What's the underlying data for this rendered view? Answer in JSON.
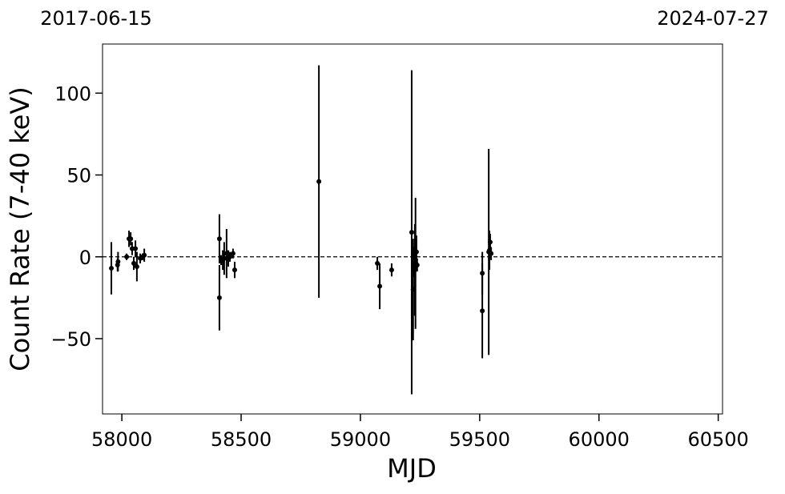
{
  "chart_data": {
    "type": "errorbar",
    "xlabel": "MJD",
    "ylabel": "Count Rate (7-40 keV)",
    "xlim": [
      57919,
      60518
    ],
    "ylim": [
      -96,
      130
    ],
    "xticks": [
      58000,
      58500,
      59000,
      59500,
      60000,
      60500
    ],
    "yticks": [
      {
        "value": -50,
        "label": "−50"
      },
      0,
      50,
      100
    ],
    "x2ticks": [
      {
        "value": 57919,
        "label": "2017-06-15"
      },
      {
        "value": 60518,
        "label": "2024-07-27"
      }
    ],
    "hline": 0,
    "color": "#000000",
    "x": [
      57956,
      57982,
      57984,
      58020,
      58030,
      58037,
      58043,
      58050,
      58057,
      58063,
      58077,
      58087,
      58094,
      58409,
      58409,
      58416,
      58423,
      58429,
      58439,
      58446,
      58453,
      58466,
      58473,
      58826,
      59071,
      59081,
      59131,
      59215,
      59221,
      59225,
      59228,
      59231,
      59235,
      59238,
      59511,
      59511,
      59538,
      59541,
      59544,
      59548
    ],
    "y": [
      -7,
      -5,
      -3,
      0,
      11,
      11,
      5,
      -4,
      5,
      -6,
      -1,
      0,
      1,
      11,
      -25,
      -2,
      -2,
      -1,
      2,
      -1,
      0,
      2,
      -8,
      46,
      -4,
      -18,
      -8,
      15,
      -20,
      -3,
      -8,
      -4,
      3,
      -5,
      -33,
      -10,
      3,
      4,
      9,
      2
    ],
    "yerr": [
      16,
      4,
      6,
      2,
      5,
      4,
      4,
      4,
      5,
      9,
      3,
      2,
      4,
      15,
      20,
      3,
      6,
      10,
      15,
      5,
      3,
      3,
      5,
      71,
      4,
      14,
      4,
      99,
      31,
      9,
      28,
      40,
      10,
      4,
      29,
      13,
      63,
      12,
      5,
      4
    ]
  }
}
